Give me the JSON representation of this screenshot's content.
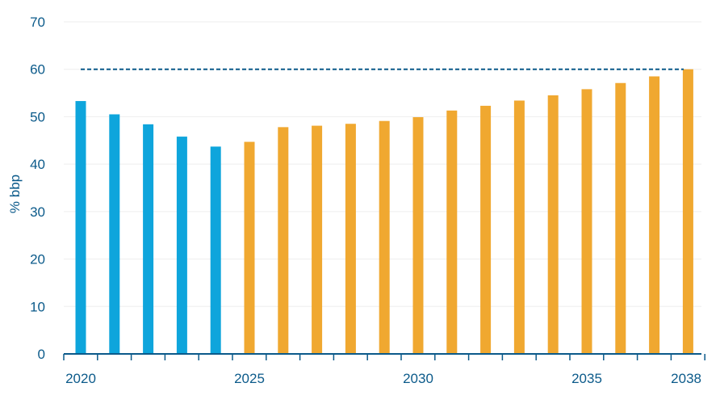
{
  "chart_data": {
    "type": "bar",
    "title": "",
    "xlabel": "",
    "ylabel": "% bbp",
    "ylim": [
      0,
      70
    ],
    "yticks": [
      0,
      10,
      20,
      30,
      40,
      50,
      60,
      70
    ],
    "grid": true,
    "categories": [
      "2020",
      "2021",
      "2022",
      "2023",
      "2024",
      "2025",
      "2026",
      "2027",
      "2028",
      "2029",
      "2030",
      "2031",
      "2032",
      "2033",
      "2034",
      "2035",
      "2036",
      "2037",
      "2038"
    ],
    "xtick_labels": [
      "2020",
      "2025",
      "2030",
      "2035",
      "2038"
    ],
    "series": [
      {
        "color": "#0ea5dc",
        "values": [
          53.3,
          50.5,
          48.4,
          45.8,
          43.7,
          null,
          null,
          null,
          null,
          null,
          null,
          null,
          null,
          null,
          null,
          null,
          null,
          null,
          null
        ]
      },
      {
        "color": "#f0a830",
        "values": [
          null,
          null,
          null,
          null,
          null,
          44.7,
          47.8,
          48.1,
          48.5,
          49.1,
          49.9,
          51.3,
          52.3,
          53.4,
          54.5,
          55.8,
          57.1,
          58.5,
          60.0
        ]
      }
    ],
    "reference_line": {
      "value": 60,
      "style": "dashed",
      "color": "#0b5a8a"
    },
    "colors": {
      "axis": "#0b5a8a",
      "text": "#0b5a8a",
      "grid": "#eeeeee"
    }
  }
}
